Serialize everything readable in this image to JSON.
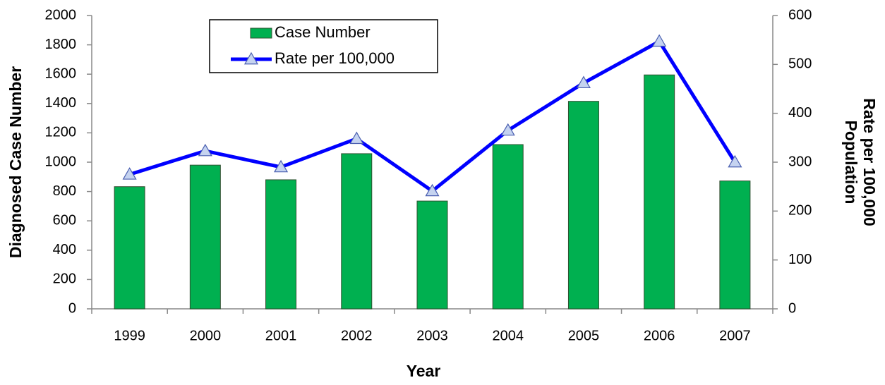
{
  "chart_data": {
    "type": "bar-line",
    "xlabel": "Year",
    "ylabel": "Diagnosed Case Number",
    "y2label": [
      "Rate per 100,000",
      "Population"
    ],
    "categories": [
      "1999",
      "2000",
      "2001",
      "2002",
      "2003",
      "2004",
      "2005",
      "2006",
      "2007"
    ],
    "series": [
      {
        "name": "Case Number",
        "type": "bar",
        "axis": "y",
        "color": "#00b050",
        "values": [
          833,
          980,
          880,
          1058,
          735,
          1120,
          1415,
          1595,
          872
        ]
      },
      {
        "name": "Rate per 100,000",
        "type": "line",
        "axis": "y2",
        "color": "#0000ff",
        "marker_color": "#c5d3f0",
        "values": [
          275,
          323,
          290,
          348,
          241,
          365,
          462,
          547,
          300
        ]
      }
    ],
    "ylim": [
      0,
      2000
    ],
    "yticks": [
      0,
      200,
      400,
      600,
      800,
      1000,
      1200,
      1400,
      1600,
      1800,
      2000
    ],
    "y2lim": [
      0,
      600
    ],
    "y2ticks": [
      0,
      100,
      200,
      300,
      400,
      500,
      600
    ],
    "legend": "upper left"
  }
}
